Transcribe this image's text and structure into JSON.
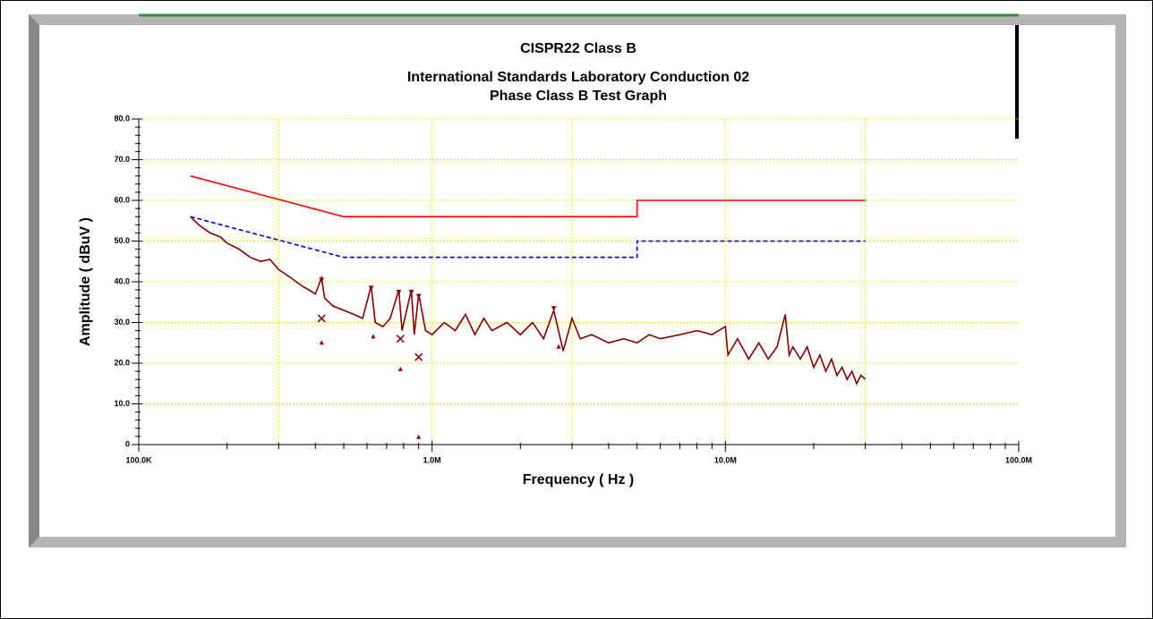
{
  "chart_data": {
    "type": "line",
    "title_lines": [
      "CISPR22 Class B",
      "International Standards Laboratory Conduction 02",
      "Phase Class B Test Graph"
    ],
    "xlabel": "Frequency ( Hz )",
    "ylabel": "Amplitude ( dBuV )",
    "xscale": "log",
    "xlim": [
      100000,
      100000000
    ],
    "xticks": [
      {
        "value": 100000,
        "label": "100.0K"
      },
      {
        "value": 1000000,
        "label": "1.0M"
      },
      {
        "value": 10000000,
        "label": "10.0M"
      },
      {
        "value": 100000000,
        "label": "100.0M"
      }
    ],
    "xminorticks": [
      200000,
      300000,
      400000,
      500000,
      600000,
      700000,
      800000,
      900000,
      2000000,
      3000000,
      4000000,
      5000000,
      6000000,
      7000000,
      8000000,
      9000000,
      20000000,
      30000000,
      40000000,
      50000000,
      60000000,
      70000000,
      80000000,
      90000000
    ],
    "xgrid": [
      300000,
      1000000,
      3000000,
      10000000,
      30000000
    ],
    "ylim": [
      0,
      80
    ],
    "yticks": [
      0,
      {
        "value": 10,
        "label": "10.0"
      },
      {
        "value": 20,
        "label": "20.0"
      },
      {
        "value": 30,
        "label": "30.0"
      },
      {
        "value": 40,
        "label": "40.0"
      },
      {
        "value": 50,
        "label": "50.0"
      },
      {
        "value": 60,
        "label": "60.0"
      },
      {
        "value": 70,
        "label": "70.0"
      },
      {
        "value": 80,
        "label": "80.0"
      }
    ],
    "yminorticks": [
      2,
      4,
      6,
      8,
      12,
      14,
      16,
      18,
      22,
      24,
      26,
      28,
      32,
      34,
      36,
      38,
      42,
      44,
      46,
      48,
      52,
      54,
      56,
      58,
      62,
      64,
      66,
      68,
      72,
      74,
      76,
      78
    ],
    "grid": true,
    "grid_color": "#e8e800",
    "series": [
      {
        "color": "#ff0000",
        "style": "solid",
        "x": [
          150000,
          500000,
          5000000,
          5000000,
          30000000
        ],
        "values": [
          66,
          56,
          56,
          60,
          60
        ]
      },
      {
        "color": "#0000cc",
        "style": "dashed",
        "x": [
          150000,
          500000,
          5000000,
          5000000,
          30000000
        ],
        "values": [
          56,
          46,
          46,
          50,
          50
        ]
      },
      {
        "color": "#800000",
        "style": "solid",
        "x": [
          150000,
          160000,
          175000,
          190000,
          200000,
          220000,
          240000,
          260000,
          280000,
          300000,
          330000,
          360000,
          380000,
          400000,
          420000,
          430000,
          460000,
          500000,
          540000,
          580000,
          620000,
          640000,
          680000,
          720000,
          770000,
          790000,
          850000,
          870000,
          900000,
          950000,
          1000000,
          1100000,
          1200000,
          1300000,
          1400000,
          1500000,
          1600000,
          1800000,
          2000000,
          2200000,
          2400000,
          2600000,
          2800000,
          3000000,
          3200000,
          3500000,
          4000000,
          4500000,
          5000000,
          5500000,
          6000000,
          7000000,
          8000000,
          9000000,
          10000000,
          10200000,
          11000000,
          12000000,
          13000000,
          14000000,
          15000000,
          16000000,
          16500000,
          17000000,
          18000000,
          19000000,
          20000000,
          21000000,
          22000000,
          23000000,
          24000000,
          25000000,
          26000000,
          27000000,
          28000000,
          29000000,
          30000000
        ],
        "values": [
          56,
          54,
          52,
          51,
          49.5,
          48,
          46,
          45,
          45.5,
          43,
          41,
          39,
          38,
          37,
          41,
          36,
          34,
          33,
          32,
          31,
          39,
          30,
          29,
          31,
          38,
          28,
          38,
          27,
          37,
          28,
          27,
          30,
          28,
          32,
          27,
          31,
          28,
          30,
          27,
          30,
          26,
          33,
          23,
          31,
          26,
          27,
          25,
          26,
          25,
          27,
          26,
          27,
          28,
          27,
          29,
          22,
          26,
          21,
          25,
          21,
          24,
          32,
          22,
          24,
          21,
          24,
          19,
          22,
          18,
          21,
          17,
          19,
          16,
          18,
          15,
          17,
          16
        ]
      },
      {
        "color": "#800000",
        "style": "none",
        "marker": "triangle-down",
        "x": [
          420000,
          620000,
          770000,
          850000,
          900000,
          2600000
        ],
        "values": [
          41,
          39,
          38,
          38,
          37,
          34
        ]
      },
      {
        "color": "#800000",
        "style": "none",
        "marker": "triangle",
        "x": [
          420000,
          630000,
          780000,
          900000,
          2700000
        ],
        "values": [
          25,
          26.5,
          18.5,
          1.8,
          24
        ]
      },
      {
        "color": "#800000",
        "style": "none",
        "marker": "cross",
        "x": [
          420000,
          780000,
          900000
        ],
        "values": [
          31,
          26,
          21.5
        ]
      }
    ]
  }
}
